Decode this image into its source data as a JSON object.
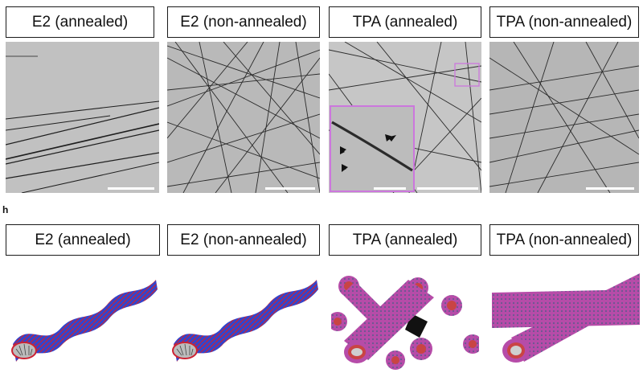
{
  "top_row": {
    "labels": [
      "E2 (annealed)",
      "E2 (non-annealed)",
      "TPA (annealed)",
      "TPA (non-annealed)"
    ]
  },
  "panel_letter": "h",
  "bottom_row": {
    "labels": [
      "E2 (annealed)",
      "E2 (non-annealed)",
      "TPA (annealed)",
      "TPA (non-annealed)"
    ]
  },
  "colors": {
    "inset_border": "#cc77dd",
    "fiber_blue": "#2233cc",
    "fiber_red": "#cc2222",
    "tube_magenta": "#cc44aa"
  }
}
